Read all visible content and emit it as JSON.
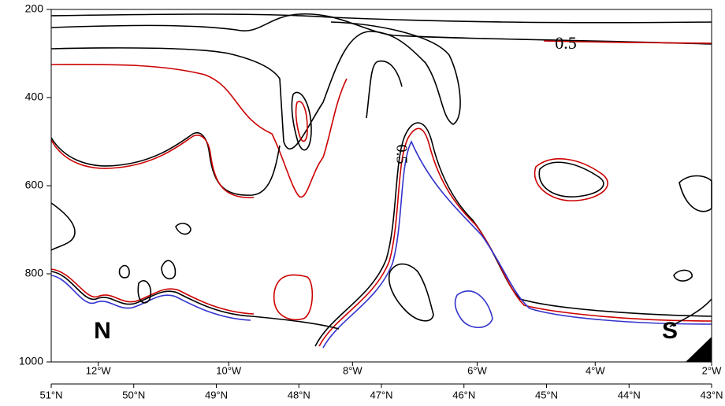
{
  "chart_data": {
    "type": "contour",
    "xlim": [
      51,
      43
    ],
    "xticks": [
      {
        "value": 51,
        "label": "51°N"
      },
      {
        "value": 50,
        "label": "50°N"
      },
      {
        "value": 49,
        "label": "49°N"
      },
      {
        "value": 48,
        "label": "48°N"
      },
      {
        "value": 47,
        "label": "47°N"
      },
      {
        "value": 46,
        "label": "46°N"
      },
      {
        "value": 45,
        "label": "45°N"
      },
      {
        "value": 44,
        "label": "44°N"
      },
      {
        "value": 43,
        "label": "43°N"
      }
    ],
    "x2ticks": [
      {
        "value": 50.43,
        "label": "12°W"
      },
      {
        "value": 48.85,
        "label": "10°W"
      },
      {
        "value": 47.35,
        "label": "8°W"
      },
      {
        "value": 45.84,
        "label": "6°W"
      },
      {
        "value": 44.41,
        "label": "4°W"
      },
      {
        "value": 43,
        "label": "2°W"
      }
    ],
    "ylim": [
      200,
      1000
    ],
    "yticks": [
      200,
      400,
      600,
      800,
      1000
    ],
    "annotations": [
      "N",
      "S",
      "0.5",
      "0.5"
    ]
  }
}
